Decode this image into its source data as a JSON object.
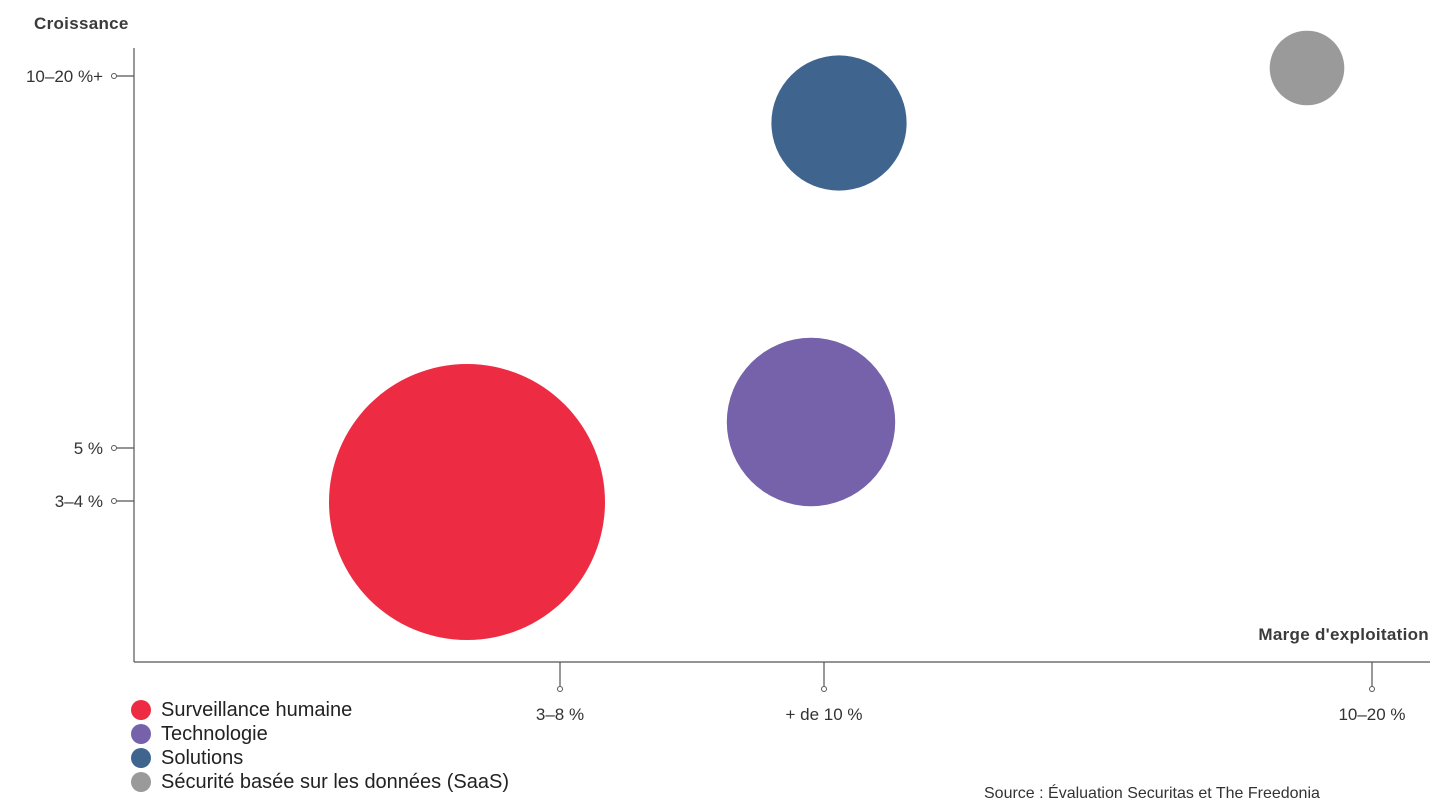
{
  "chart_data": {
    "type": "scatter",
    "title": "",
    "ylabel": "Croissance",
    "xlabel": "Marge d'exploitation",
    "y_ticks": [
      "10–20 %+",
      "5 %",
      "3–4 %"
    ],
    "x_ticks": [
      "3–8 %",
      "+ de 10 %",
      "10–20 %"
    ],
    "legend_position": "bottom-left",
    "grid": false,
    "series": [
      {
        "name": "Surveillance humaine",
        "color": "#ED2C43",
        "x": "3–8 %",
        "y": "3–4 %",
        "relative_size": 1.0
      },
      {
        "name": "Technologie",
        "color": "#7562AB",
        "x": "+ de 10 %",
        "y": "5 %",
        "relative_size": 0.61
      },
      {
        "name": "Solutions",
        "color": "#3F658E",
        "x": "+ de 10 %",
        "y": "10–20 %+",
        "relative_size": 0.49
      },
      {
        "name": "Sécurité basée sur les données (SaaS)",
        "color": "#9A9A9B",
        "x": "10–20 %",
        "y": "10–20 %+",
        "relative_size": 0.27
      }
    ]
  },
  "source": "Source : Évaluation Securitas et The Freedonia"
}
